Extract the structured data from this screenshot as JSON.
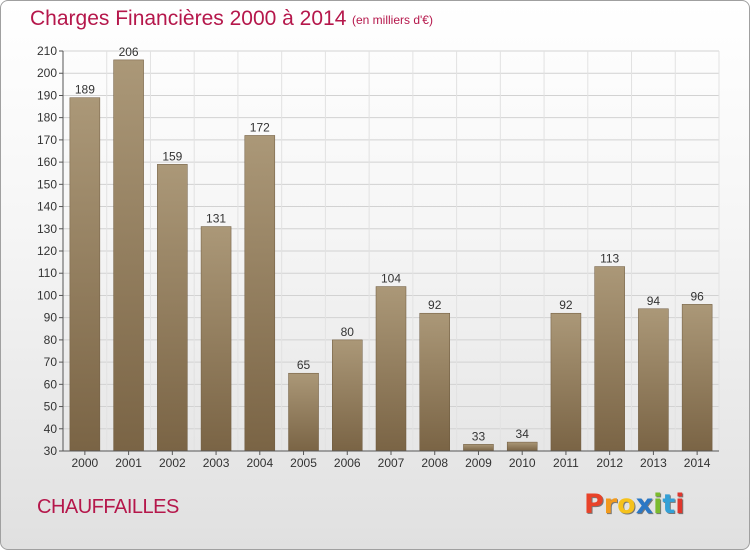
{
  "header": {
    "title": "Charges Financières 2000 à 2014",
    "subtitle": "(en milliers d'€)"
  },
  "footer": {
    "town": "CHAUFFAILLES",
    "logo_letters": [
      "P",
      "r",
      "o",
      "x",
      "i",
      "t",
      "i"
    ]
  },
  "colors": {
    "title": "#b5174b",
    "bar_top": "#ab9878",
    "bar_bottom": "#7a6445",
    "logo": [
      "#e8432a",
      "#f29a1d",
      "#f6c21b",
      "#2b78c5",
      "#7bbb2e",
      "#34a0d6",
      "#e0362c"
    ]
  },
  "chart_data": {
    "type": "bar",
    "title": "Charges Financières 2000 à 2014",
    "subtitle": "(en milliers d'€)",
    "xlabel": "",
    "ylabel": "",
    "ylim": [
      30,
      210
    ],
    "yticks": [
      30,
      40,
      50,
      60,
      70,
      80,
      90,
      100,
      110,
      120,
      130,
      140,
      150,
      160,
      170,
      180,
      190,
      200,
      210
    ],
    "grid": true,
    "categories": [
      "2000",
      "2001",
      "2002",
      "2003",
      "2004",
      "2005",
      "2006",
      "2007",
      "2008",
      "2009",
      "2010",
      "2011",
      "2012",
      "2013",
      "2014"
    ],
    "values": [
      189,
      206,
      159,
      131,
      172,
      65,
      80,
      104,
      92,
      33,
      34,
      92,
      113,
      94,
      96
    ]
  }
}
